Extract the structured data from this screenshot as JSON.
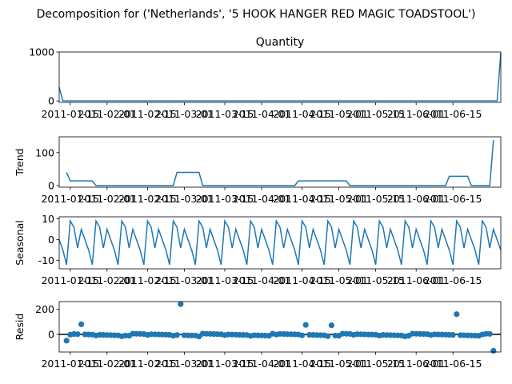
{
  "figure": {
    "suptitle": "Decomposition for ('Netherlands', '5 HOOK HANGER RED MAGIC TOADSTOOL')"
  },
  "colors": {
    "line": "#1f77b4",
    "marker": "#1f77b4",
    "axis": "#000000",
    "zero_line": "#000000"
  },
  "chart_data": [
    {
      "type": "line",
      "title": "Quantity",
      "ylabel": "",
      "ylim": [
        -30,
        1000
      ],
      "yticks": [
        0,
        1000
      ],
      "xlim": [
        0,
        120
      ],
      "xticks": [
        3,
        13,
        24,
        34,
        45,
        55,
        66,
        76,
        86,
        97,
        107
      ],
      "xticklabels": [
        "2011-01-15",
        "2011-02-01",
        "2011-02-15",
        "2011-03-01",
        "2011-03-15",
        "2011-04-01",
        "2011-04-15",
        "2011-05-01",
        "2011-05-15",
        "2011-06-01",
        "2011-06-15"
      ],
      "series": [
        {
          "x": [
            0,
            1,
            2,
            3,
            4,
            5,
            6,
            7,
            8,
            9,
            10,
            11,
            12,
            13,
            14,
            15,
            16,
            17,
            18,
            19,
            20,
            21,
            22,
            23,
            24,
            25,
            26,
            27,
            28,
            29,
            30,
            31,
            32,
            33,
            34,
            35,
            36,
            37,
            38,
            39,
            40,
            41,
            42,
            43,
            44,
            45,
            46,
            47,
            48,
            49,
            50,
            51,
            52,
            53,
            54,
            55,
            56,
            57,
            58,
            59,
            60,
            61,
            62,
            63,
            64,
            65,
            66,
            67,
            68,
            69,
            70,
            71,
            72,
            73,
            74,
            75,
            76,
            77,
            78,
            79,
            80,
            81,
            82,
            83,
            84,
            85,
            86,
            87,
            88,
            89,
            90,
            91,
            92,
            93,
            94,
            95,
            96,
            97,
            98,
            99,
            100,
            101,
            102,
            103,
            104,
            105,
            106,
            107,
            108,
            109,
            110,
            111,
            112,
            113,
            114,
            115,
            116,
            117,
            118,
            119,
            120
          ],
          "y": [
            280,
            0,
            0,
            0,
            0,
            0,
            0,
            0,
            0,
            0,
            0,
            0,
            0,
            0,
            0,
            0,
            0,
            0,
            0,
            0,
            0,
            0,
            0,
            0,
            0,
            0,
            0,
            0,
            0,
            0,
            0,
            0,
            0,
            0,
            0,
            0,
            0,
            0,
            0,
            0,
            0,
            0,
            0,
            0,
            0,
            0,
            0,
            0,
            0,
            0,
            0,
            0,
            0,
            0,
            0,
            0,
            0,
            0,
            0,
            0,
            0,
            0,
            0,
            0,
            0,
            0,
            0,
            0,
            0,
            0,
            0,
            0,
            0,
            0,
            0,
            0,
            0,
            0,
            0,
            0,
            0,
            0,
            0,
            0,
            0,
            0,
            0,
            0,
            0,
            0,
            0,
            0,
            0,
            0,
            0,
            0,
            0,
            0,
            0,
            0,
            0,
            0,
            0,
            0,
            0,
            0,
            0,
            0,
            0,
            0,
            0,
            0,
            0,
            0,
            0,
            0,
            0,
            0,
            0,
            0,
            980
          ]
        }
      ]
    },
    {
      "type": "line",
      "title": "",
      "ylabel": "Trend",
      "ylim": [
        -5,
        148
      ],
      "yticks": [
        0,
        100
      ],
      "xlim": [
        0,
        120
      ],
      "xticks": [
        3,
        13,
        24,
        34,
        45,
        55,
        66,
        76,
        86,
        97,
        107
      ],
      "xticklabels": [
        "2011-01-15",
        "2011-02-01",
        "2011-02-15",
        "2011-03-01",
        "2011-03-15",
        "2011-04-01",
        "2011-04-15",
        "2011-05-01",
        "2011-05-15",
        "2011-06-01",
        "2011-06-15"
      ],
      "series": [
        {
          "x": [
            2,
            3,
            9,
            10,
            31,
            32,
            38,
            39,
            64,
            65,
            78,
            79,
            105,
            106,
            111,
            112,
            117,
            118
          ],
          "y": [
            40,
            14,
            14,
            0,
            0,
            40,
            40,
            0,
            0,
            14,
            14,
            0,
            0,
            28,
            28,
            0,
            0,
            138
          ]
        }
      ]
    },
    {
      "type": "line",
      "title": "",
      "ylabel": "Seasonal",
      "ylim": [
        -14,
        11
      ],
      "yticks": [
        -10,
        0,
        10
      ],
      "xlim": [
        0,
        120
      ],
      "xticks": [
        3,
        13,
        24,
        34,
        45,
        55,
        66,
        76,
        86,
        97,
        107
      ],
      "xticklabels": [
        "2011-01-15",
        "2011-02-01",
        "2011-02-15",
        "2011-03-01",
        "2011-03-15",
        "2011-04-01",
        "2011-04-15",
        "2011-05-01",
        "2011-05-15",
        "2011-06-01",
        "2011-06-15"
      ],
      "period": 7,
      "pattern": [
        0,
        -5,
        -12,
        9,
        6,
        -4,
        5
      ],
      "series": []
    },
    {
      "type": "scatter",
      "title": "",
      "ylabel": "Resid",
      "ylim": [
        -140,
        260
      ],
      "yticks": [
        0,
        200
      ],
      "xlim": [
        0,
        120
      ],
      "xticks": [
        3,
        13,
        24,
        34,
        45,
        55,
        66,
        76,
        86,
        97,
        107
      ],
      "xticklabels": [
        "2011-01-15",
        "2011-02-01",
        "2011-02-15",
        "2011-03-01",
        "2011-03-15",
        "2011-04-01",
        "2011-04-15",
        "2011-05-01",
        "2011-05-15",
        "2011-06-01",
        "2011-06-15"
      ],
      "zero_line": true,
      "outliers": [
        [
          2,
          -50
        ],
        [
          6,
          80
        ],
        [
          33,
          240
        ],
        [
          67,
          75
        ],
        [
          74,
          72
        ],
        [
          108,
          160
        ],
        [
          118,
          -130
        ]
      ],
      "series": []
    }
  ]
}
